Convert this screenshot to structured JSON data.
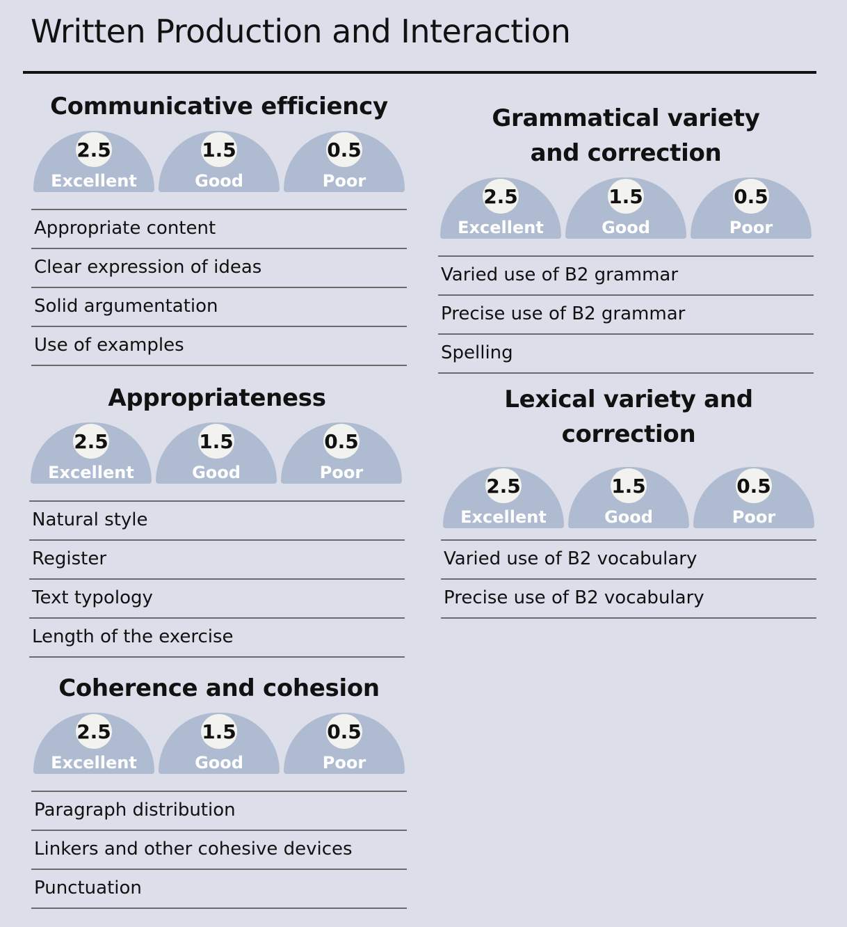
{
  "page": {
    "title": "Written Production and Interaction"
  },
  "colors": {
    "background": "#dcdee9",
    "dome": "#afbbd0",
    "score_bubble": "#f2f2ee",
    "rule": "#111111"
  },
  "sections": [
    {
      "title": "Communicative efficiency",
      "ratings": [
        {
          "score": "2.5",
          "level": "Excellent"
        },
        {
          "score": "1.5",
          "level": "Good"
        },
        {
          "score": "0.5",
          "level": "Poor"
        }
      ],
      "criteria": [
        "Appropriate content",
        "Clear expression of ideas",
        "Solid argumentation",
        "Use of examples"
      ]
    },
    {
      "title": "Appropriateness",
      "ratings": [
        {
          "score": "2.5",
          "level": "Excellent"
        },
        {
          "score": "1.5",
          "level": "Good"
        },
        {
          "score": "0.5",
          "level": "Poor"
        }
      ],
      "criteria": [
        "Natural style",
        "Register",
        "Text typology",
        "Length of the exercise"
      ]
    },
    {
      "title": "Coherence and cohesion",
      "ratings": [
        {
          "score": "2.5",
          "level": "Excellent"
        },
        {
          "score": "1.5",
          "level": "Good"
        },
        {
          "score": "0.5",
          "level": "Poor"
        }
      ],
      "criteria": [
        "Paragraph distribution",
        "Linkers and other cohesive devices",
        "Punctuation"
      ]
    },
    {
      "title_line1": "Grammatical variety",
      "title_line2": "and correction",
      "ratings": [
        {
          "score": "2.5",
          "level": "Excellent"
        },
        {
          "score": "1.5",
          "level": "Good"
        },
        {
          "score": "0.5",
          "level": "Poor"
        }
      ],
      "criteria": [
        "Varied use of B2 grammar",
        "Precise use of B2 grammar",
        "Spelling"
      ]
    },
    {
      "title_line1": "Lexical variety and",
      "title_line2": "correction",
      "ratings": [
        {
          "score": "2.5",
          "level": "Excellent"
        },
        {
          "score": "1.5",
          "level": "Good"
        },
        {
          "score": "0.5",
          "level": "Poor"
        }
      ],
      "criteria": [
        "Varied use of B2 vocabulary",
        "Precise use of B2 vocabulary"
      ]
    }
  ]
}
